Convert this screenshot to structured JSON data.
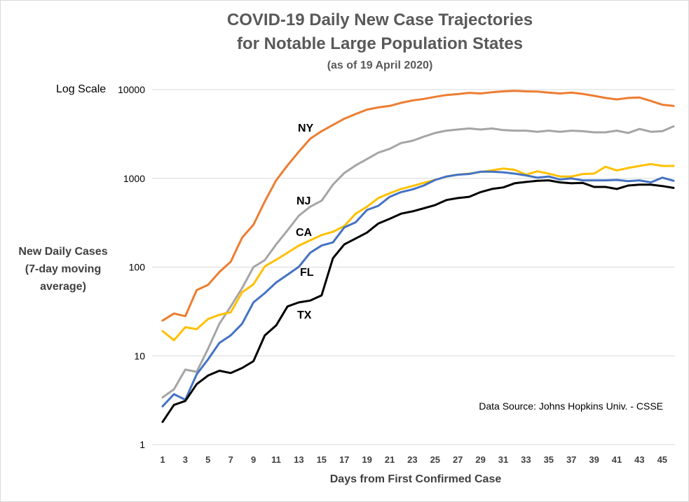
{
  "chart_data": {
    "type": "line",
    "title": "COVID-19 Daily New Case Trajectories",
    "subtitle": "for Notable Large Population States",
    "date_note": "(as of 19 April 2020)",
    "scale_note": "Log Scale",
    "ylabel_lines": [
      "New Daily Cases",
      "(7-day moving",
      "average)"
    ],
    "xlabel": "Days from First Confirmed Case",
    "source": "Data Source: Johns Hopkins Univ. - CSSE",
    "y_scale": "log",
    "ylim": [
      1,
      10000
    ],
    "y_ticks": [
      1,
      10,
      100,
      1000,
      10000
    ],
    "y_tick_labels": [
      "1",
      "10",
      "100",
      "1000",
      "10000"
    ],
    "xlim": [
      1,
      46
    ],
    "x_tick_labels": [
      "1",
      "3",
      "5",
      "7",
      "9",
      "11",
      "13",
      "15",
      "17",
      "19",
      "21",
      "23",
      "25",
      "27",
      "29",
      "31",
      "33",
      "35",
      "37",
      "39",
      "41",
      "43",
      "45"
    ],
    "grid": true,
    "series": [
      {
        "name": "NY",
        "color": "#ed7d31",
        "values": [
          25,
          30,
          28,
          55,
          63,
          88,
          115,
          215,
          300,
          550,
          950,
          1400,
          2000,
          2800,
          3400,
          4000,
          4700,
          5300,
          5950,
          6300,
          6550,
          7100,
          7550,
          7850,
          8300,
          8700,
          8900,
          9200,
          9050,
          9350,
          9550,
          9700,
          9550,
          9500,
          9250,
          9050,
          9250,
          8950,
          8500,
          8050,
          7750,
          8050,
          8150,
          7450,
          6750,
          6550
        ]
      },
      {
        "name": "NJ",
        "color": "#a5a5a5",
        "values": [
          3.4,
          4.2,
          7,
          6.6,
          12,
          23,
          36,
          58,
          100,
          120,
          180,
          260,
          380,
          480,
          560,
          850,
          1150,
          1400,
          1650,
          1950,
          2150,
          2500,
          2650,
          2950,
          3250,
          3450,
          3550,
          3650,
          3550,
          3650,
          3500,
          3450,
          3450,
          3350,
          3450,
          3350,
          3450,
          3400,
          3300,
          3300,
          3450,
          3250,
          3600,
          3350,
          3400,
          3850
        ]
      },
      {
        "name": "CA",
        "color": "#ffc000",
        "values": [
          19,
          15,
          21,
          20,
          26,
          29,
          31,
          52,
          64,
          102,
          121,
          145,
          175,
          200,
          230,
          250,
          290,
          400,
          480,
          600,
          680,
          760,
          820,
          890,
          960,
          1050,
          1100,
          1130,
          1180,
          1230,
          1290,
          1250,
          1100,
          1200,
          1130,
          1050,
          1050,
          1120,
          1130,
          1350,
          1230,
          1310,
          1380,
          1450,
          1380,
          1380
        ]
      },
      {
        "name": "FL",
        "color": "#4472c4",
        "values": [
          2.7,
          3.7,
          3.2,
          6.2,
          9.1,
          14,
          17,
          23,
          40,
          51,
          67,
          82,
          101,
          145,
          175,
          190,
          280,
          320,
          440,
          490,
          620,
          700,
          750,
          830,
          960,
          1050,
          1100,
          1120,
          1190,
          1190,
          1170,
          1130,
          1080,
          1020,
          1050,
          970,
          1000,
          950,
          950,
          950,
          960,
          930,
          950,
          900,
          1020,
          940
        ]
      },
      {
        "name": "TX",
        "color": "#000000",
        "values": [
          1.8,
          2.8,
          3.1,
          4.8,
          6,
          6.8,
          6.4,
          7.3,
          8.7,
          17,
          22,
          36,
          40,
          42,
          48,
          126,
          180,
          210,
          245,
          310,
          350,
          400,
          425,
          460,
          500,
          570,
          600,
          620,
          700,
          760,
          790,
          880,
          910,
          940,
          950,
          900,
          880,
          890,
          800,
          800,
          760,
          830,
          850,
          850,
          820,
          780
        ]
      }
    ]
  }
}
